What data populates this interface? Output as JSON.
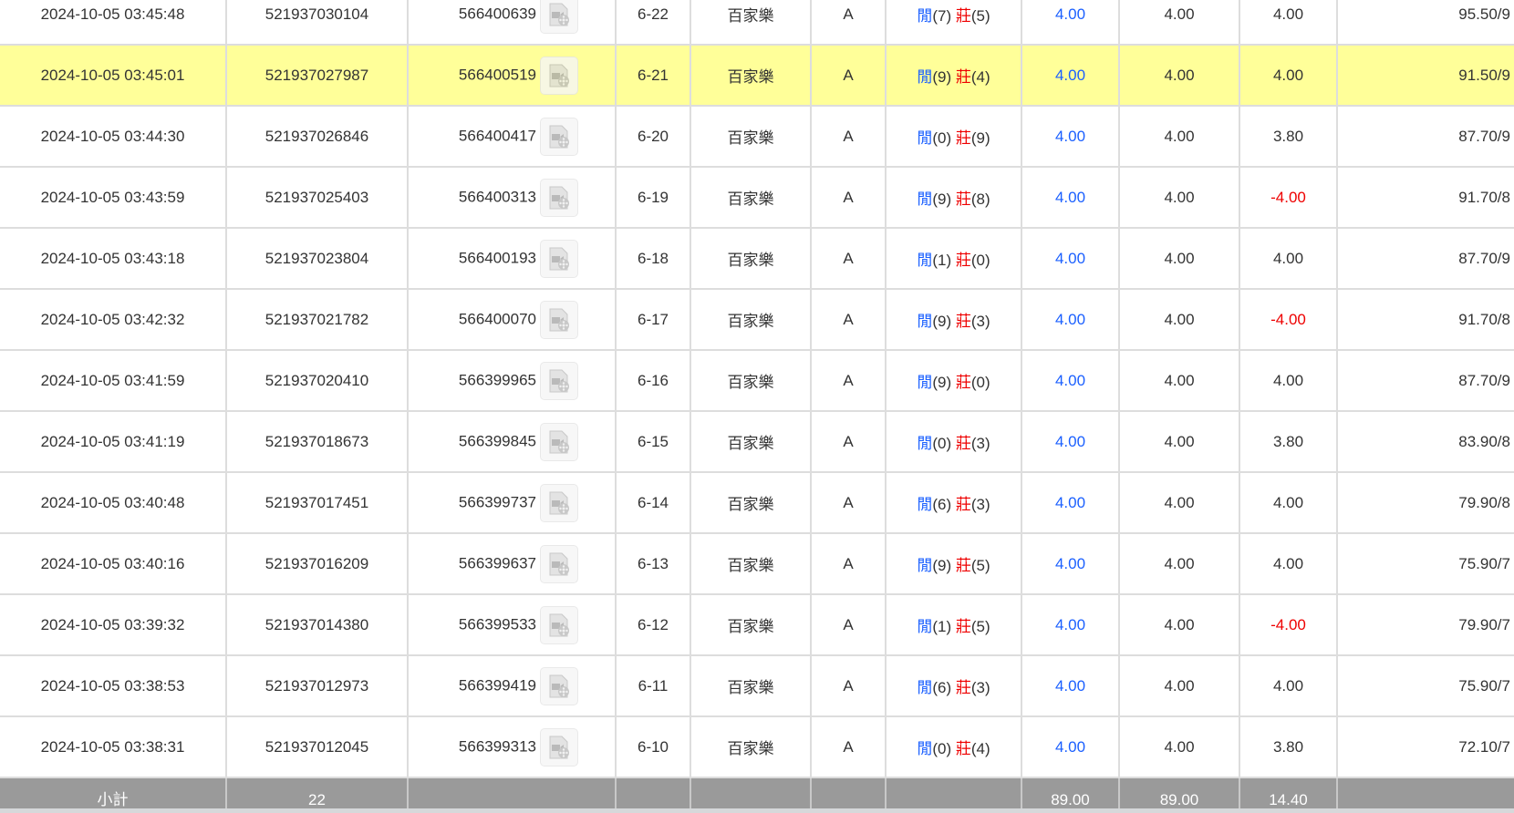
{
  "rows": [
    {
      "time": "2024-10-05 03:45:48",
      "bet_id": "521937030104",
      "round_id": "566400639",
      "shoe": "6-22",
      "game": "百家樂",
      "table": "A",
      "player_label": "閒",
      "player": "(7)",
      "banker_label": "莊",
      "banker": "(5)",
      "bet": "4.00",
      "valid": "4.00",
      "win": "4.00",
      "win_neg": false,
      "balance": "95.50/9"
    },
    {
      "time": "2024-10-05 03:45:01",
      "bet_id": "521937027987",
      "round_id": "566400519",
      "shoe": "6-21",
      "game": "百家樂",
      "table": "A",
      "player_label": "閒",
      "player": "(9)",
      "banker_label": "莊",
      "banker": "(4)",
      "bet": "4.00",
      "valid": "4.00",
      "win": "4.00",
      "win_neg": false,
      "balance": "91.50/9",
      "highlighted": true
    },
    {
      "time": "2024-10-05 03:44:30",
      "bet_id": "521937026846",
      "round_id": "566400417",
      "shoe": "6-20",
      "game": "百家樂",
      "table": "A",
      "player_label": "閒",
      "player": "(0)",
      "banker_label": "莊",
      "banker": "(9)",
      "bet": "4.00",
      "valid": "4.00",
      "win": "3.80",
      "win_neg": false,
      "balance": "87.70/9"
    },
    {
      "time": "2024-10-05 03:43:59",
      "bet_id": "521937025403",
      "round_id": "566400313",
      "shoe": "6-19",
      "game": "百家樂",
      "table": "A",
      "player_label": "閒",
      "player": "(9)",
      "banker_label": "莊",
      "banker": "(8)",
      "bet": "4.00",
      "valid": "4.00",
      "win": "-4.00",
      "win_neg": true,
      "balance": "91.70/8"
    },
    {
      "time": "2024-10-05 03:43:18",
      "bet_id": "521937023804",
      "round_id": "566400193",
      "shoe": "6-18",
      "game": "百家樂",
      "table": "A",
      "player_label": "閒",
      "player": "(1)",
      "banker_label": "莊",
      "banker": "(0)",
      "bet": "4.00",
      "valid": "4.00",
      "win": "4.00",
      "win_neg": false,
      "balance": "87.70/9"
    },
    {
      "time": "2024-10-05 03:42:32",
      "bet_id": "521937021782",
      "round_id": "566400070",
      "shoe": "6-17",
      "game": "百家樂",
      "table": "A",
      "player_label": "閒",
      "player": "(9)",
      "banker_label": "莊",
      "banker": "(3)",
      "bet": "4.00",
      "valid": "4.00",
      "win": "-4.00",
      "win_neg": true,
      "balance": "91.70/8"
    },
    {
      "time": "2024-10-05 03:41:59",
      "bet_id": "521937020410",
      "round_id": "566399965",
      "shoe": "6-16",
      "game": "百家樂",
      "table": "A",
      "player_label": "閒",
      "player": "(9)",
      "banker_label": "莊",
      "banker": "(0)",
      "bet": "4.00",
      "valid": "4.00",
      "win": "4.00",
      "win_neg": false,
      "balance": "87.70/9"
    },
    {
      "time": "2024-10-05 03:41:19",
      "bet_id": "521937018673",
      "round_id": "566399845",
      "shoe": "6-15",
      "game": "百家樂",
      "table": "A",
      "player_label": "閒",
      "player": "(0)",
      "banker_label": "莊",
      "banker": "(3)",
      "bet": "4.00",
      "valid": "4.00",
      "win": "3.80",
      "win_neg": false,
      "balance": "83.90/8"
    },
    {
      "time": "2024-10-05 03:40:48",
      "bet_id": "521937017451",
      "round_id": "566399737",
      "shoe": "6-14",
      "game": "百家樂",
      "table": "A",
      "player_label": "閒",
      "player": "(6)",
      "banker_label": "莊",
      "banker": "(3)",
      "bet": "4.00",
      "valid": "4.00",
      "win": "4.00",
      "win_neg": false,
      "balance": "79.90/8"
    },
    {
      "time": "2024-10-05 03:40:16",
      "bet_id": "521937016209",
      "round_id": "566399637",
      "shoe": "6-13",
      "game": "百家樂",
      "table": "A",
      "player_label": "閒",
      "player": "(9)",
      "banker_label": "莊",
      "banker": "(5)",
      "bet": "4.00",
      "valid": "4.00",
      "win": "4.00",
      "win_neg": false,
      "balance": "75.90/7"
    },
    {
      "time": "2024-10-05 03:39:32",
      "bet_id": "521937014380",
      "round_id": "566399533",
      "shoe": "6-12",
      "game": "百家樂",
      "table": "A",
      "player_label": "閒",
      "player": "(1)",
      "banker_label": "莊",
      "banker": "(5)",
      "bet": "4.00",
      "valid": "4.00",
      "win": "-4.00",
      "win_neg": true,
      "balance": "79.90/7"
    },
    {
      "time": "2024-10-05 03:38:53",
      "bet_id": "521937012973",
      "round_id": "566399419",
      "shoe": "6-11",
      "game": "百家樂",
      "table": "A",
      "player_label": "閒",
      "player": "(6)",
      "banker_label": "莊",
      "banker": "(3)",
      "bet": "4.00",
      "valid": "4.00",
      "win": "4.00",
      "win_neg": false,
      "balance": "75.90/7"
    },
    {
      "time": "2024-10-05 03:38:31",
      "bet_id": "521937012045",
      "round_id": "566399313",
      "shoe": "6-10",
      "game": "百家樂",
      "table": "A",
      "player_label": "閒",
      "player": "(0)",
      "banker_label": "莊",
      "banker": "(4)",
      "bet": "4.00",
      "valid": "4.00",
      "win": "3.80",
      "win_neg": false,
      "balance": "72.10/7"
    }
  ],
  "footer": {
    "label": "小計",
    "count": "22",
    "bet_total": "89.00",
    "valid_total": "89.00",
    "win_total": "14.40"
  },
  "colors": {
    "highlight": "#ffff99",
    "player": "#1a5fff",
    "banker": "#e00000",
    "negative": "#e00000",
    "footer": "#9a9a9a"
  },
  "icons": {
    "replay": "video-file-icon"
  }
}
